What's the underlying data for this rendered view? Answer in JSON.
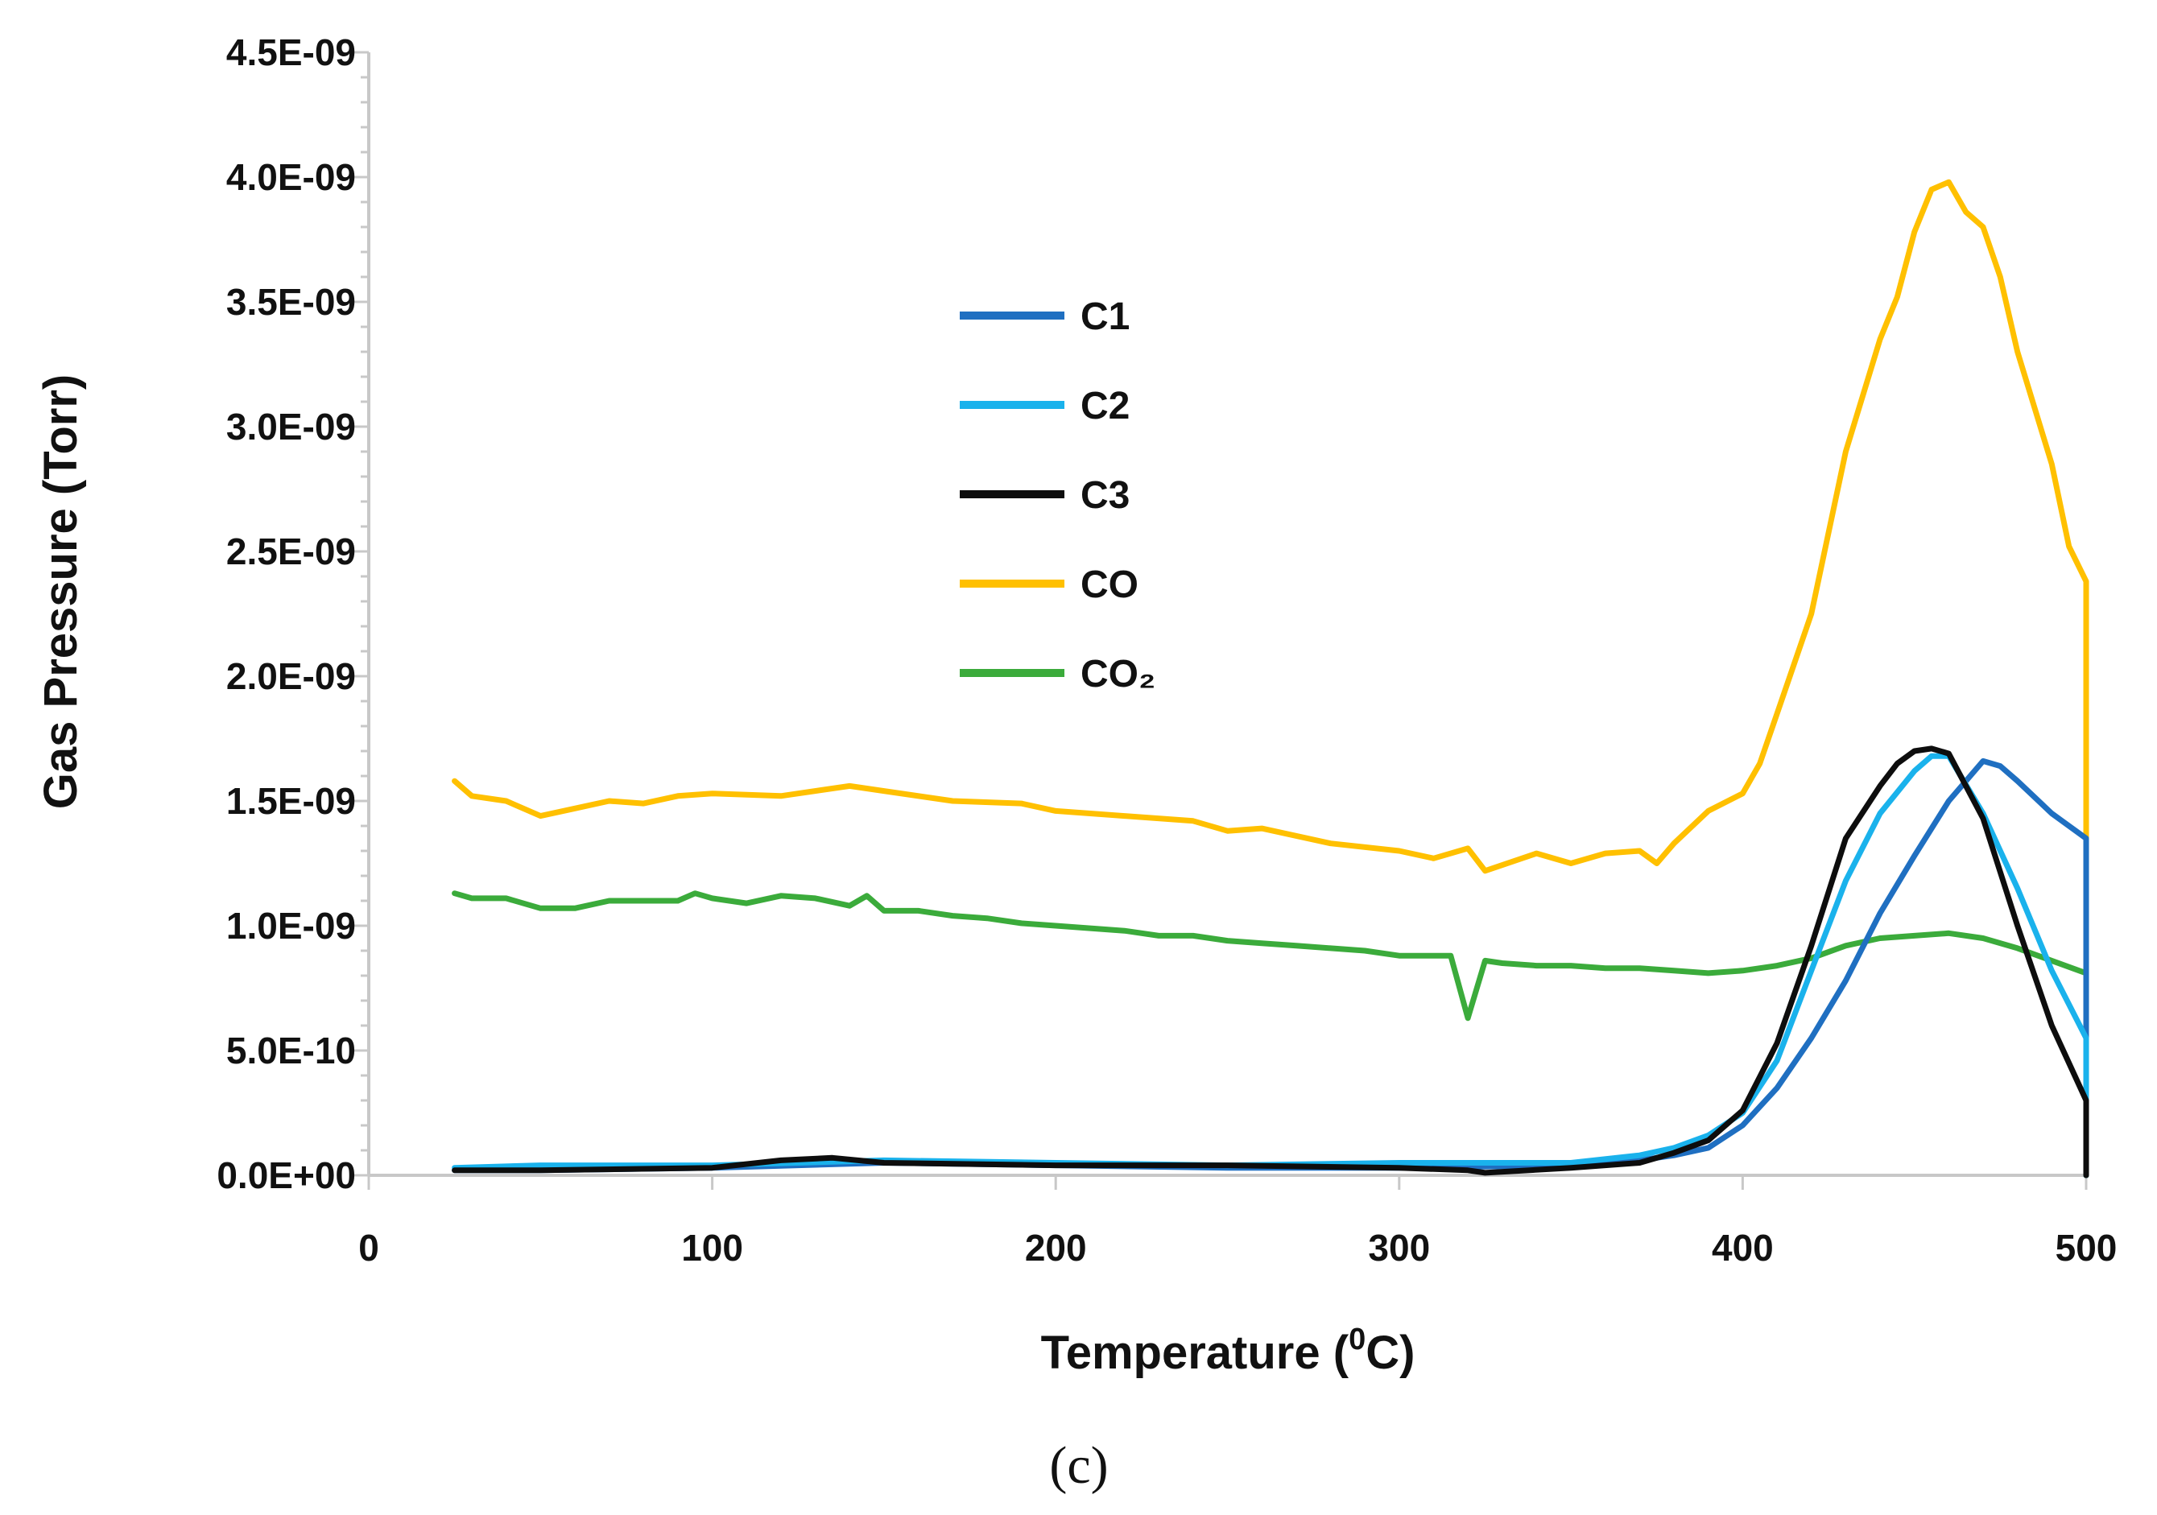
{
  "chart_data": {
    "type": "line",
    "xlabel": "Temperature (",
    "xlabel_sup": "0",
    "xlabel_suffix": "C)",
    "ylabel": "Gas Pressure (Torr)",
    "caption": "(c)",
    "xlim": [
      0,
      500
    ],
    "ylim": [
      0,
      4.5e-09
    ],
    "xticks": [
      0,
      100,
      200,
      300,
      400,
      500
    ],
    "xtick_labels": [
      "0",
      "100",
      "200",
      "300",
      "400",
      "500"
    ],
    "yticks": [
      0,
      5e-10,
      1e-09,
      1.5e-09,
      2e-09,
      2.5e-09,
      3e-09,
      3.5e-09,
      4e-09,
      4.5e-09
    ],
    "ytick_labels": [
      "0.0E+00",
      "5.0E-10",
      "1.0E-09",
      "1.5E-09",
      "2.0E-09",
      "2.5E-09",
      "3.0E-09",
      "3.5E-09",
      "4.0E-09",
      "4.5E-09"
    ],
    "legend_position": "upper-left-center",
    "series": [
      {
        "name": "C1",
        "color": "#1f6fc1",
        "x": [
          25,
          50,
          100,
          150,
          200,
          250,
          300,
          350,
          370,
          380,
          390,
          400,
          410,
          420,
          430,
          440,
          450,
          460,
          470,
          475,
          480,
          490,
          500
        ],
        "values": [
          2e-11,
          2e-11,
          3e-11,
          5e-11,
          4e-11,
          3e-11,
          3e-11,
          4e-11,
          6e-11,
          8e-11,
          1.1e-10,
          2e-10,
          3.5e-10,
          5.5e-10,
          7.8e-10,
          1.05e-09,
          1.28e-09,
          1.5e-09,
          1.66e-09,
          1.64e-09,
          1.58e-09,
          1.45e-09,
          1.35e-09
        ]
      },
      {
        "name": "C2",
        "color": "#1ab2ec",
        "x": [
          25,
          50,
          100,
          150,
          200,
          250,
          300,
          350,
          370,
          380,
          390,
          400,
          410,
          420,
          430,
          440,
          450,
          455,
          460,
          470,
          480,
          490,
          500
        ],
        "values": [
          3e-11,
          4e-11,
          4e-11,
          6e-11,
          5e-11,
          4e-11,
          5e-11,
          5e-11,
          8e-11,
          1.1e-10,
          1.6e-10,
          2.5e-10,
          4.6e-10,
          8.2e-10,
          1.18e-09,
          1.45e-09,
          1.62e-09,
          1.68e-09,
          1.68e-09,
          1.45e-09,
          1.15e-09,
          8.2e-10,
          5.5e-10
        ]
      },
      {
        "name": "C3",
        "color": "#0d0d0d",
        "x": [
          25,
          50,
          100,
          120,
          135,
          150,
          200,
          250,
          300,
          320,
          325,
          350,
          370,
          380,
          390,
          400,
          410,
          420,
          430,
          440,
          445,
          450,
          455,
          460,
          470,
          480,
          490,
          500
        ],
        "values": [
          2e-11,
          2e-11,
          3e-11,
          6e-11,
          7e-11,
          5e-11,
          4e-11,
          4e-11,
          3e-11,
          2e-11,
          1e-11,
          3e-11,
          5e-11,
          9e-11,
          1.4e-10,
          2.6e-10,
          5.3e-10,
          9.2e-10,
          1.35e-09,
          1.56e-09,
          1.65e-09,
          1.7e-09,
          1.71e-09,
          1.69e-09,
          1.43e-09,
          1e-09,
          6e-10,
          3e-10
        ]
      },
      {
        "name": "CO",
        "color": "#ffc000",
        "x": [
          25,
          30,
          40,
          50,
          60,
          70,
          80,
          90,
          100,
          120,
          140,
          150,
          170,
          190,
          200,
          220,
          240,
          250,
          260,
          280,
          300,
          310,
          320,
          325,
          340,
          350,
          360,
          370,
          375,
          380,
          390,
          400,
          405,
          410,
          420,
          430,
          440,
          445,
          450,
          455,
          460,
          465,
          470,
          475,
          480,
          490,
          495,
          500
        ],
        "values": [
          1.58e-09,
          1.52e-09,
          1.5e-09,
          1.44e-09,
          1.47e-09,
          1.5e-09,
          1.49e-09,
          1.52e-09,
          1.53e-09,
          1.52e-09,
          1.56e-09,
          1.54e-09,
          1.5e-09,
          1.49e-09,
          1.46e-09,
          1.44e-09,
          1.42e-09,
          1.38e-09,
          1.39e-09,
          1.33e-09,
          1.3e-09,
          1.27e-09,
          1.31e-09,
          1.22e-09,
          1.29e-09,
          1.25e-09,
          1.29e-09,
          1.3e-09,
          1.25e-09,
          1.33e-09,
          1.46e-09,
          1.53e-09,
          1.65e-09,
          1.85e-09,
          2.25e-09,
          2.9e-09,
          3.35e-09,
          3.52e-09,
          3.78e-09,
          3.95e-09,
          3.98e-09,
          3.86e-09,
          3.8e-09,
          3.6e-09,
          3.3e-09,
          2.85e-09,
          2.52e-09,
          2.38e-09
        ]
      },
      {
        "name": "CO₂",
        "color": "#3bab3b",
        "x": [
          25,
          30,
          40,
          50,
          60,
          70,
          80,
          90,
          95,
          100,
          110,
          120,
          130,
          140,
          145,
          150,
          160,
          170,
          180,
          190,
          200,
          210,
          220,
          230,
          240,
          250,
          260,
          270,
          280,
          290,
          300,
          310,
          315,
          320,
          325,
          330,
          340,
          350,
          360,
          370,
          380,
          390,
          400,
          410,
          420,
          430,
          440,
          450,
          460,
          470,
          480,
          490,
          500
        ],
        "values": [
          1.13e-09,
          1.11e-09,
          1.11e-09,
          1.07e-09,
          1.07e-09,
          1.1e-09,
          1.1e-09,
          1.1e-09,
          1.13e-09,
          1.11e-09,
          1.09e-09,
          1.12e-09,
          1.11e-09,
          1.08e-09,
          1.12e-09,
          1.06e-09,
          1.06e-09,
          1.04e-09,
          1.03e-09,
          1.01e-09,
          1e-09,
          9.9e-10,
          9.8e-10,
          9.6e-10,
          9.6e-10,
          9.4e-10,
          9.3e-10,
          9.2e-10,
          9.1e-10,
          9e-10,
          8.8e-10,
          8.8e-10,
          8.8e-10,
          6.3e-10,
          8.6e-10,
          8.5e-10,
          8.4e-10,
          8.4e-10,
          8.3e-10,
          8.3e-10,
          8.2e-10,
          8.1e-10,
          8.2e-10,
          8.4e-10,
          8.7e-10,
          9.2e-10,
          9.5e-10,
          9.6e-10,
          9.7e-10,
          9.5e-10,
          9.1e-10,
          8.6e-10,
          8.1e-10
        ]
      }
    ]
  }
}
